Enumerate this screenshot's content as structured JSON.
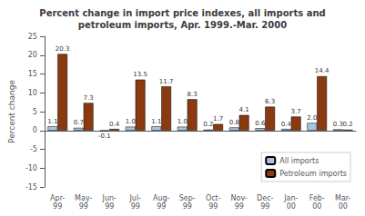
{
  "chart_data": {
    "type": "bar",
    "title": "Percent change in import price indexes, all imports and\npetroleum imports, Apr. 1999.-Mar. 2000",
    "categories": [
      "Apr-\n99",
      "May-\n99",
      "Jun-\n99",
      "Jul-\n99",
      "Aug-\n99",
      "Sep-\n99",
      "Oct-\n99",
      "Nov-\n99",
      "Dec-\n99",
      "Jan-\n00",
      "Feb-\n00",
      "Mar-\n00"
    ],
    "series": [
      {
        "name": "All imports",
        "color": "#a8c4e0",
        "values": [
          1.1,
          0.7,
          -0.1,
          1.0,
          1.1,
          1.0,
          0.2,
          0.8,
          0.6,
          0.4,
          2.0,
          0.3
        ],
        "value_labels": [
          "1.1",
          "0.7",
          "-0.1",
          "1.0",
          "1.1",
          "1.0",
          "0.2",
          "0.8",
          "0.6",
          "0.4",
          "2.0",
          "0.3"
        ]
      },
      {
        "name": "Petroleum imports",
        "color": "#8b3a0f",
        "values": [
          20.3,
          7.3,
          0.4,
          13.5,
          11.7,
          8.3,
          1.7,
          4.1,
          6.3,
          3.7,
          14.4,
          0.2
        ]
      }
    ],
    "ylabel": "Percent change",
    "ylim": [
      -15,
      25
    ],
    "yticks": [
      -15,
      -10,
      -5,
      0,
      5,
      10,
      15,
      20,
      25
    ],
    "grid": false,
    "legend": "lower right",
    "data_labels": true
  }
}
